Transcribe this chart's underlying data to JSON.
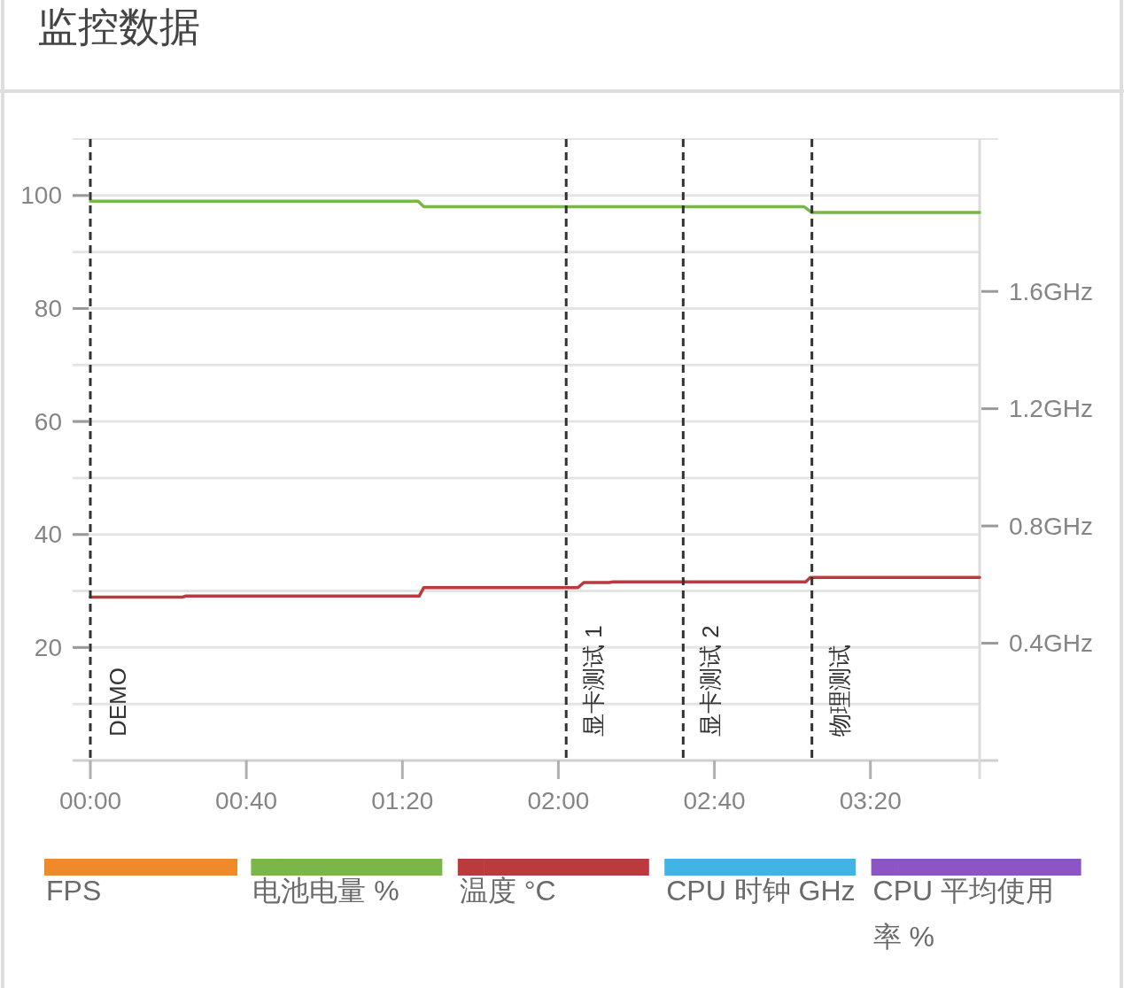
{
  "chart_data": {
    "type": "line",
    "title": "监控数据",
    "xlim": [
      0,
      228
    ],
    "xticks": [
      {
        "value": 0,
        "label": "00:00"
      },
      {
        "value": 40,
        "label": "00:40"
      },
      {
        "value": 80,
        "label": "01:20"
      },
      {
        "value": 120,
        "label": "02:00"
      },
      {
        "value": 160,
        "label": "02:40"
      },
      {
        "value": 200,
        "label": "03:20"
      }
    ],
    "ylim": [
      0,
      110
    ],
    "yticks": [
      {
        "value": 10,
        "label": null
      },
      20,
      {
        "value": 30,
        "label": null
      },
      40,
      {
        "value": 50,
        "label": null
      },
      60,
      {
        "value": 70,
        "label": null
      },
      80,
      {
        "value": 90,
        "label": null
      },
      100
    ],
    "y2lim": [
      0,
      2.12
    ],
    "y2ticks": [
      {
        "value": 0.4,
        "label": "0.4GHz"
      },
      {
        "value": 0.8,
        "label": "0.8GHz"
      },
      {
        "value": 1.2,
        "label": "1.2GHz"
      },
      {
        "value": 1.6,
        "label": "1.6GHz"
      }
    ],
    "series": [
      {
        "name": "FPS",
        "color": "#ef8a2b"
      },
      {
        "name": "电池电量 %",
        "color": "#7ab648",
        "x": [
          0,
          84,
          85.5,
          183,
          185,
          228
        ],
        "values": [
          99,
          99,
          98,
          98,
          97,
          97
        ]
      },
      {
        "name": "温度 °C",
        "color": "#bb3a3d",
        "x": [
          0,
          23.5,
          24.5,
          84.3,
          85.5,
          125,
          126.5,
          133,
          134,
          183.4,
          184.6,
          228
        ],
        "values": [
          28.9,
          28.9,
          29.1,
          29.1,
          30.6,
          30.6,
          31.5,
          31.5,
          31.6,
          31.6,
          32.4,
          32.4
        ]
      },
      {
        "name": "CPU 时钟 GHz",
        "color": "#42b3e5"
      },
      {
        "name": "CPU 平均使用率 %",
        "color": "#8c55c6"
      }
    ],
    "ref_lines": [
      {
        "axis": "x",
        "value": 0,
        "label": "DEMO",
        "color": "#333333",
        "line_style": "dashed"
      },
      {
        "axis": "x",
        "value": 122,
        "label": "显卡测试 1",
        "color": "#333333",
        "line_style": "dashed"
      },
      {
        "axis": "x",
        "value": 152,
        "label": "显卡测试 2",
        "color": "#333333",
        "line_style": "dashed"
      },
      {
        "axis": "x",
        "value": 185,
        "label": "物理测试",
        "color": "#333333",
        "line_style": "dashed"
      }
    ],
    "grid": "y",
    "legend": "bottom"
  }
}
